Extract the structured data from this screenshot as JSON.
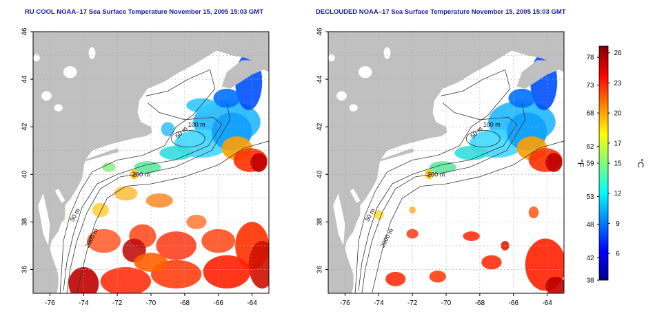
{
  "panels": [
    {
      "title": "RU COOL NOAA–17 Sea Surface Temperature November 15, 2005 15:03 GMT",
      "variant": "cool"
    },
    {
      "title": "DECLOUDED NOAA–17 Sea Surface Temperature November 15, 2005 15:03 GMT",
      "variant": "declouded"
    }
  ],
  "axes": {
    "x_ticks": [
      "-76",
      "-74",
      "-72",
      "-70",
      "-68",
      "-66",
      "-64"
    ],
    "y_ticks": [
      "46",
      "44",
      "42",
      "40",
      "38",
      "36"
    ],
    "lon_range": [
      -77,
      -63
    ],
    "lat_range": [
      35,
      46
    ]
  },
  "contours": {
    "labels": [
      "50 m",
      "100 m",
      "200 m",
      "2000 m"
    ]
  },
  "colorbar": {
    "fahrenheit_unit": "°F",
    "celsius_unit": "°C",
    "fahrenheit_ticks": [
      "78",
      "73",
      "68",
      "62",
      "59",
      "53",
      "48",
      "42",
      "38"
    ],
    "celsius_ticks": [
      "26",
      "23",
      "20",
      "17",
      "15",
      "12",
      "9",
      "6"
    ],
    "colors": [
      "#00008f",
      "#0000ff",
      "#0080ff",
      "#00ffff",
      "#80ff80",
      "#ffff00",
      "#ff8000",
      "#ff0000",
      "#800000"
    ]
  },
  "colors": {
    "land": "#c0c0c0",
    "ocean": "#ffffff",
    "title": "#1a1a9a",
    "grid": "#aaaaaa"
  }
}
